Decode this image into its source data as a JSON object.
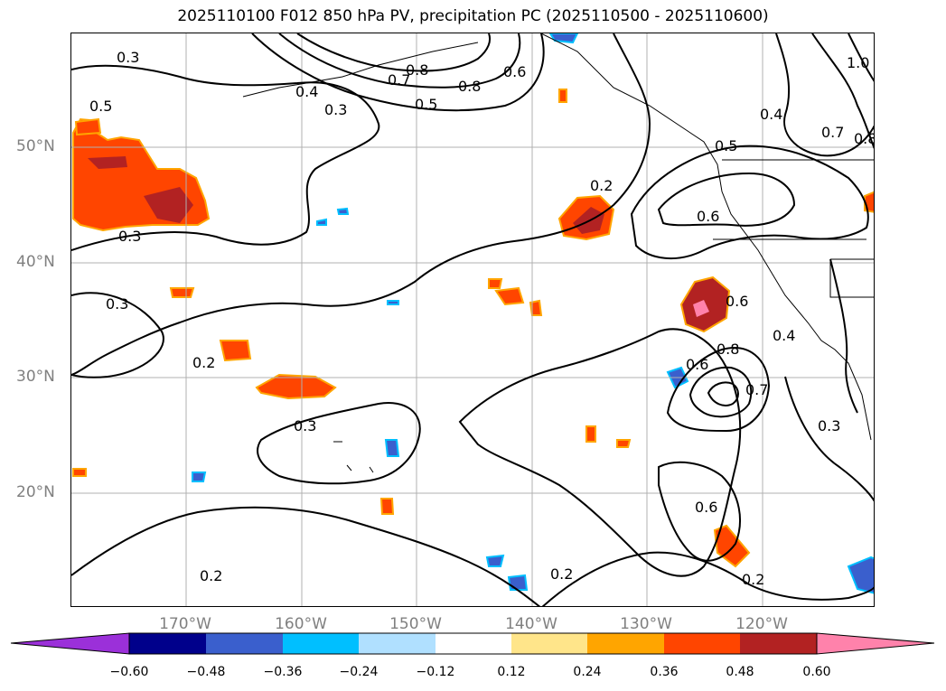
{
  "title": "2025110100 F012 850 hPa PV, precipitation PC (2025110500 - 2025110600)",
  "lat_labels": [
    "50°N",
    "40°N",
    "30°N",
    "20°N"
  ],
  "lon_labels": [
    "170°W",
    "160°W",
    "150°W",
    "140°W",
    "130°W",
    "120°W"
  ],
  "colorbar": {
    "ticks": [
      "−0.60",
      "−0.48",
      "−0.36",
      "−0.24",
      "−0.12",
      "0.12",
      "0.24",
      "0.36",
      "0.48",
      "0.60"
    ],
    "colors": [
      "#9b30d9",
      "#00008b",
      "#3a5fcd",
      "#00bfff",
      "#b0e0ff",
      "#ffffff",
      "#ffe58a",
      "#ffa500",
      "#ff4500",
      "#b22222",
      "#ff82ab"
    ]
  },
  "contour_labels": [
    "0.3",
    "0.4",
    "0.5",
    "0.3",
    "0.7",
    "0.8",
    "0.5",
    "0.8",
    "0.6",
    "1.0",
    "0.4",
    "0.7",
    "0.8",
    "0.5",
    "0.2",
    "0.6",
    "0.3",
    "0.3",
    "0.2",
    "0.3",
    "0.6",
    "0.4",
    "0.8",
    "0.6",
    "0.7",
    "0.3",
    "0.6",
    "0.2",
    "0.2",
    "0.2"
  ],
  "colors": {
    "frame": "#000000",
    "grid": "#b0b0b0",
    "axis_text": "#808080"
  }
}
